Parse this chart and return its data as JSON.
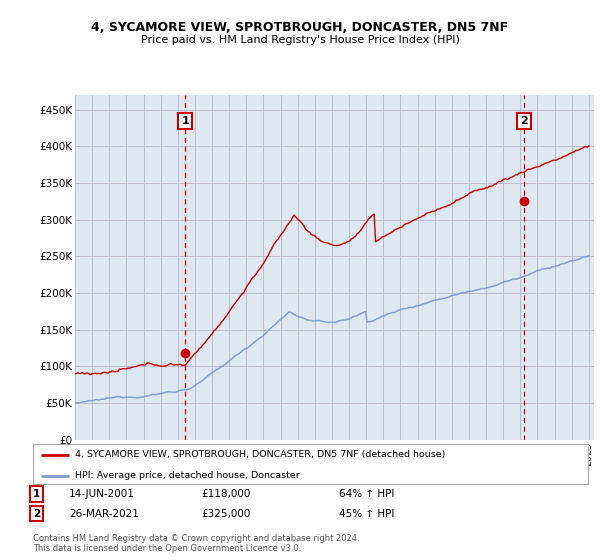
{
  "title1": "4, SYCAMORE VIEW, SPROTBROUGH, DONCASTER, DN5 7NF",
  "title2": "Price paid vs. HM Land Registry's House Price Index (HPI)",
  "ylabel_ticks": [
    "£0",
    "£50K",
    "£100K",
    "£150K",
    "£200K",
    "£250K",
    "£300K",
    "£350K",
    "£400K",
    "£450K"
  ],
  "ytick_vals": [
    0,
    50000,
    100000,
    150000,
    200000,
    250000,
    300000,
    350000,
    400000,
    450000
  ],
  "ylim": [
    0,
    470000
  ],
  "xlim_start": 1995.0,
  "xlim_end": 2025.3,
  "sale1_x": 2001.45,
  "sale1_y": 118000,
  "sale2_x": 2021.23,
  "sale2_y": 325000,
  "red_color": "#cc0000",
  "blue_color": "#7799cc",
  "vline_color": "#cc0000",
  "grid_color": "#bbbbcc",
  "plot_bg": "#dde8f0",
  "bg_color": "#ffffff",
  "legend_line1": "4, SYCAMORE VIEW, SPROTBROUGH, DONCASTER, DN5 7NF (detached house)",
  "legend_line2": "HPI: Average price, detached house, Doncaster",
  "ann1_date": "14-JUN-2001",
  "ann1_price": "£118,000",
  "ann1_hpi": "64% ↑ HPI",
  "ann2_date": "26-MAR-2021",
  "ann2_price": "£325,000",
  "ann2_hpi": "45% ↑ HPI",
  "footer": "Contains HM Land Registry data © Crown copyright and database right 2024.\nThis data is licensed under the Open Government Licence v3.0."
}
